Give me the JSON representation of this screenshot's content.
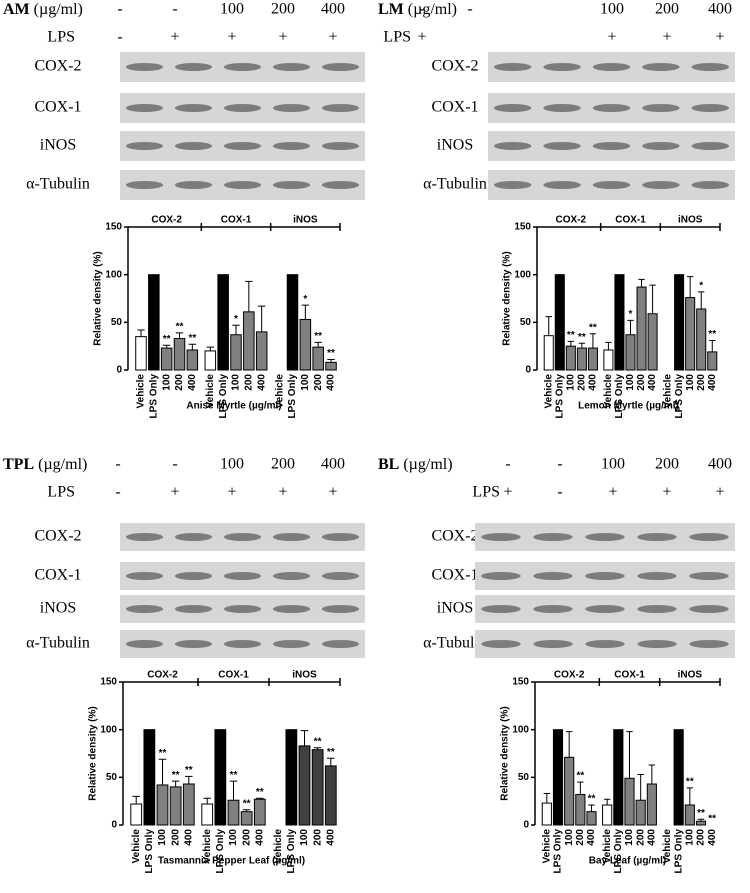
{
  "blots": [
    {
      "extract": "AM",
      "unit": "(µg/ml)",
      "doses": [
        "-",
        "-",
        "100",
        "200",
        "400"
      ],
      "lps_label": "LPS",
      "lps": [
        "-",
        "+",
        "+",
        "+",
        "+"
      ],
      "proteins": [
        "COX-2",
        "COX-1",
        "iNOS",
        "α-Tubulin"
      ]
    },
    {
      "extract": "LM",
      "unit": "(µg/ml)",
      "doses": [
        "-",
        "-",
        "100",
        "200",
        "400"
      ],
      "lps_label": "LPS",
      "lps": [
        "+",
        null,
        "+",
        "+",
        "+"
      ],
      "proteins": [
        "COX-2",
        "COX-1",
        "iNOS",
        "α-Tubulin"
      ]
    },
    {
      "extract": "TPL",
      "unit": "(µg/ml)",
      "doses": [
        "-",
        "-",
        "100",
        "200",
        "400"
      ],
      "lps_label": "LPS",
      "lps": [
        "-",
        "+",
        "+",
        "+",
        "+"
      ],
      "proteins": [
        "COX-2",
        "COX-1",
        "iNOS",
        "α-Tubulin"
      ]
    },
    {
      "extract": "BL",
      "unit": "(µg/ml)",
      "doses": [
        "-",
        "-",
        "100",
        "200",
        "400"
      ],
      "lps_label": "LPS",
      "lps": [
        "+",
        "-",
        "+",
        "+",
        "+"
      ],
      "proteins": [
        "COX-2",
        "COX-1",
        "iNOS",
        "α-Tubulin"
      ]
    }
  ],
  "chart_data": [
    {
      "type": "bar",
      "x_label": "Anise Myrtle (µg/ml)",
      "y_label": "Relative density (%)",
      "groups": [
        "COX-2",
        "COX-1",
        "iNOS"
      ],
      "categories": [
        "Vehicle",
        "LPS Only",
        "100",
        "200",
        "400",
        "Vehicle",
        "LPS Only",
        "100",
        "200",
        "400",
        "Vehicle",
        "LPS Only",
        "100",
        "200",
        "400"
      ],
      "values": [
        35,
        100,
        23,
        33,
        21,
        20,
        100,
        37,
        61,
        40,
        0,
        100,
        53,
        24,
        8
      ],
      "errors": [
        7,
        null,
        3,
        6,
        6,
        4,
        null,
        10,
        32,
        27,
        null,
        null,
        15,
        5,
        3
      ],
      "significance": [
        null,
        null,
        "**",
        "**",
        "**",
        null,
        null,
        "*",
        null,
        null,
        null,
        null,
        "*",
        "**",
        "**"
      ],
      "colors": [
        "#ffffff",
        "#000000",
        "#808080",
        "#808080",
        "#808080",
        "#ffffff",
        "#000000",
        "#808080",
        "#808080",
        "#808080",
        "#ffffff",
        "#000000",
        "#808080",
        "#808080",
        "#808080"
      ],
      "ylim": [
        0,
        150
      ],
      "yticks": [
        0,
        50,
        100,
        150
      ]
    },
    {
      "type": "bar",
      "x_label": "Lemon Myrtle (µg/ml)",
      "y_label": "Relative density (%)",
      "groups": [
        "COX-2",
        "COX-1",
        "iNOS"
      ],
      "categories": [
        "Vehicle",
        "LPS Only",
        "100",
        "200",
        "400",
        "Vehicle",
        "LPS Only",
        "100",
        "200",
        "400",
        "Vehicle",
        "LPS Only",
        "100",
        "200",
        "400"
      ],
      "values": [
        36,
        100,
        25,
        23,
        23,
        21,
        100,
        37,
        87,
        59,
        0,
        100,
        76,
        64,
        19
      ],
      "errors": [
        20,
        null,
        5,
        5,
        15,
        8,
        null,
        15,
        8,
        30,
        null,
        null,
        22,
        18,
        12
      ],
      "significance": [
        null,
        null,
        "**",
        "**",
        "**",
        null,
        null,
        "*",
        null,
        null,
        null,
        null,
        null,
        "*",
        "**"
      ],
      "colors": [
        "#ffffff",
        "#000000",
        "#808080",
        "#808080",
        "#808080",
        "#ffffff",
        "#000000",
        "#808080",
        "#808080",
        "#808080",
        "#ffffff",
        "#000000",
        "#808080",
        "#808080",
        "#808080"
      ],
      "ylim": [
        0,
        150
      ],
      "yticks": [
        0,
        50,
        100,
        150
      ]
    },
    {
      "type": "bar",
      "x_label": "Tasmannia Pepper Leaf (µg/ml)",
      "y_label": "Relative density (%)",
      "groups": [
        "COX-2",
        "COX-1",
        "iNOS"
      ],
      "categories": [
        "Vehicle",
        "LPS Only",
        "100",
        "200",
        "400",
        "Vehicle",
        "LPS Only",
        "100",
        "200",
        "400",
        "Vehicle",
        "LPS Only",
        "100",
        "200",
        "400"
      ],
      "values": [
        22,
        100,
        42,
        40,
        43,
        22,
        100,
        26,
        14,
        27,
        0,
        100,
        83,
        79,
        62
      ],
      "errors": [
        8,
        null,
        27,
        6,
        8,
        6,
        null,
        20,
        2,
        1,
        null,
        null,
        16,
        2,
        8
      ],
      "significance": [
        null,
        null,
        "**",
        "**",
        "**",
        null,
        null,
        "**",
        "**",
        "**",
        null,
        null,
        null,
        "**",
        "**"
      ],
      "colors": [
        "#ffffff",
        "#000000",
        "#808080",
        "#808080",
        "#808080",
        "#ffffff",
        "#000000",
        "#808080",
        "#808080",
        "#808080",
        "#ffffff",
        "#000000",
        "#404040",
        "#404040",
        "#404040"
      ],
      "ylim": [
        0,
        150
      ],
      "yticks": [
        0,
        50,
        100,
        150
      ]
    },
    {
      "type": "bar",
      "x_label": "Bay Leaf (µg/ml)",
      "y_label": "Relative density (%)",
      "groups": [
        "COX-2",
        "COX-1",
        "iNOS"
      ],
      "categories": [
        "Vehicle",
        "LPS Only",
        "100",
        "200",
        "400",
        "Vehicle",
        "LPS Only",
        "100",
        "200",
        "400",
        "Vehicle",
        "LPS Only",
        "100",
        "200",
        "400"
      ],
      "values": [
        23,
        100,
        71,
        32,
        14,
        21,
        100,
        49,
        26,
        43,
        0,
        100,
        21,
        4,
        0
      ],
      "errors": [
        10,
        null,
        27,
        13,
        7,
        6,
        null,
        49,
        27,
        20,
        null,
        null,
        18,
        2,
        null
      ],
      "significance": [
        null,
        null,
        null,
        "**",
        "**",
        null,
        null,
        null,
        null,
        null,
        null,
        null,
        "**",
        "**",
        "**"
      ],
      "colors": [
        "#ffffff",
        "#000000",
        "#808080",
        "#808080",
        "#808080",
        "#ffffff",
        "#000000",
        "#808080",
        "#808080",
        "#808080",
        "#ffffff",
        "#000000",
        "#808080",
        "#808080",
        "#808080"
      ],
      "ylim": [
        0,
        150
      ],
      "yticks": [
        0,
        50,
        100,
        150
      ]
    }
  ]
}
